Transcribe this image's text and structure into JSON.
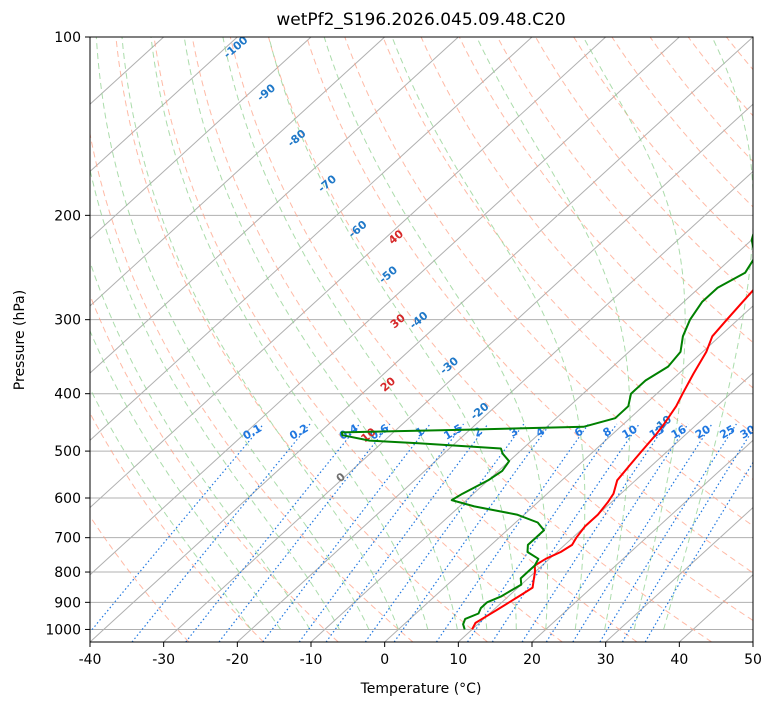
{
  "chart_data": {
    "type": "line",
    "title": "wetPf2_S196.2026.045.09.48.C20",
    "xlabel": "Temperature (°C)",
    "ylabel": "Pressure (hPa)",
    "xlim": [
      -40,
      50
    ],
    "ylim": [
      1050,
      100
    ],
    "xticks": [
      "-40",
      "-30",
      "-20",
      "-10",
      "0",
      "10",
      "20",
      "30",
      "40",
      "50"
    ],
    "yticks": [
      "100",
      "200",
      "300",
      "400",
      "500",
      "600",
      "700",
      "800",
      "900",
      "1000"
    ],
    "series": [
      {
        "name": "temperature",
        "color": "#ff0000",
        "points": [
          [
            1000,
            10.0
          ],
          [
            975,
            9.5
          ],
          [
            950,
            10.0
          ],
          [
            925,
            10.5
          ],
          [
            900,
            11.0
          ],
          [
            875,
            11.5
          ],
          [
            850,
            12.0
          ],
          [
            825,
            11.0
          ],
          [
            800,
            10.0
          ],
          [
            780,
            9.0
          ],
          [
            760,
            9.5
          ],
          [
            740,
            10.5
          ],
          [
            720,
            11.0
          ],
          [
            700,
            10.5
          ],
          [
            670,
            10.0
          ],
          [
            640,
            10.0
          ],
          [
            610,
            9.5
          ],
          [
            590,
            9.0
          ],
          [
            560,
            7.5
          ],
          [
            530,
            7.0
          ],
          [
            500,
            6.5
          ],
          [
            470,
            6.0
          ],
          [
            450,
            5.5
          ],
          [
            420,
            4.5
          ],
          [
            400,
            3.5
          ],
          [
            370,
            2.0
          ],
          [
            340,
            0.5
          ],
          [
            320,
            -1.0
          ],
          [
            300,
            -1.5
          ],
          [
            280,
            -2.0
          ],
          [
            260,
            -2.5
          ],
          [
            245,
            -3.0
          ],
          [
            235,
            -3.0
          ],
          [
            225,
            -1.5
          ],
          [
            215,
            0.0
          ],
          [
            200,
            1.0
          ],
          [
            185,
            2.5
          ],
          [
            170,
            5.0
          ],
          [
            160,
            7.0
          ],
          [
            150,
            9.5
          ],
          [
            140,
            10.5
          ],
          [
            130,
            11.0
          ],
          [
            120,
            12.5
          ],
          [
            110,
            14.5
          ],
          [
            100,
            16.0
          ]
        ]
      },
      {
        "name": "dewpoint",
        "color": "#008000",
        "points": [
          [
            1000,
            9.0
          ],
          [
            980,
            8.0
          ],
          [
            960,
            7.5
          ],
          [
            940,
            8.5
          ],
          [
            920,
            8.0
          ],
          [
            900,
            8.0
          ],
          [
            880,
            9.0
          ],
          [
            860,
            9.5
          ],
          [
            840,
            10.0
          ],
          [
            820,
            9.0
          ],
          [
            800,
            9.0
          ],
          [
            780,
            9.0
          ],
          [
            760,
            8.5
          ],
          [
            740,
            6.0
          ],
          [
            720,
            5.0
          ],
          [
            700,
            5.0
          ],
          [
            680,
            5.0
          ],
          [
            660,
            3.0
          ],
          [
            640,
            -1.0
          ],
          [
            620,
            -8.0
          ],
          [
            605,
            -12.0
          ],
          [
            590,
            -11.5
          ],
          [
            560,
            -10.0
          ],
          [
            540,
            -9.5
          ],
          [
            520,
            -10.0
          ],
          [
            505,
            -12.0
          ],
          [
            495,
            -13.0
          ],
          [
            485,
            -25.0
          ],
          [
            480,
            -32.0
          ],
          [
            470,
            -36.5
          ],
          [
            465,
            -37.0
          ],
          [
            460,
            -20.0
          ],
          [
            455,
            -5.0
          ],
          [
            440,
            -2.0
          ],
          [
            420,
            -2.0
          ],
          [
            400,
            -3.5
          ],
          [
            380,
            -3.5
          ],
          [
            360,
            -2.5
          ],
          [
            340,
            -3.0
          ],
          [
            320,
            -5.0
          ],
          [
            300,
            -6.5
          ],
          [
            280,
            -7.5
          ],
          [
            265,
            -7.5
          ],
          [
            250,
            -6.0
          ],
          [
            235,
            -7.0
          ],
          [
            220,
            -10.0
          ],
          [
            205,
            -12.0
          ],
          [
            195,
            -12.0
          ],
          [
            185,
            -11.5
          ],
          [
            175,
            -13.0
          ],
          [
            165,
            -14.5
          ],
          [
            160,
            -13.5
          ],
          [
            155,
            -11.5
          ],
          [
            150,
            -9.5
          ],
          [
            145,
            -9.0
          ],
          [
            140,
            -9.5
          ],
          [
            135,
            -9.0
          ],
          [
            130,
            -8.0
          ],
          [
            125,
            -6.0
          ],
          [
            120,
            -4.5
          ],
          [
            115,
            -3.5
          ],
          [
            110,
            -2.5
          ],
          [
            105,
            -1.5
          ],
          [
            100,
            -0.5
          ]
        ]
      }
    ],
    "dry_adiabat_labels": [
      "-100",
      "-90",
      "-80",
      "-70",
      "-60",
      "-50",
      "-40",
      "-30",
      "-20",
      "-10",
      "0",
      "10",
      "20",
      "30",
      "40"
    ],
    "mixing_ratio_labels": [
      "0.1",
      "0.2",
      "0.4",
      "0.6",
      "1",
      "1.5",
      "2",
      "3",
      "4",
      "6",
      "8",
      "10",
      "13",
      "16",
      "20",
      "25",
      "30",
      "36"
    ],
    "colors": {
      "isotherm": "#b0b0b0",
      "dry_adiabat": "#ff9c80",
      "moist_adiabat": "#8fd08f",
      "mixing_ratio": "#1f77e0",
      "label_blue": "#1f78c8",
      "label_red": "#d62728",
      "label_gray": "#707070",
      "grid": "#b0b0b0"
    }
  }
}
